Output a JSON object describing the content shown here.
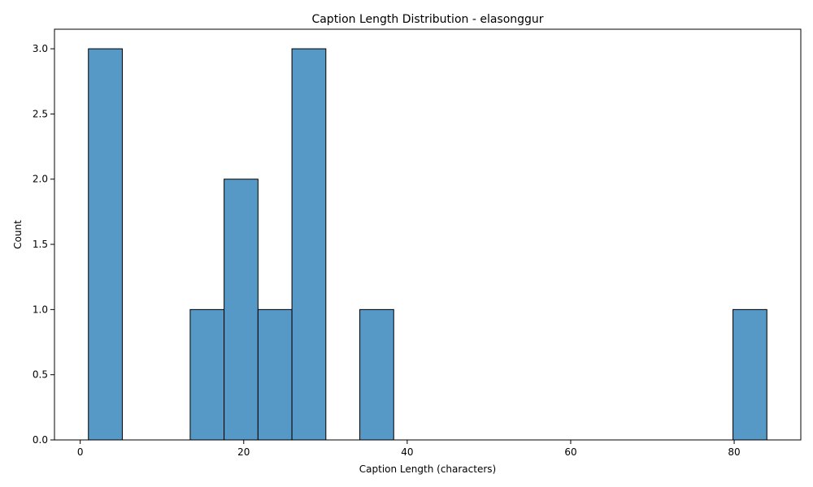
{
  "chart_data": {
    "type": "bar",
    "title": "Caption Length Distribution - elasonggur",
    "xlabel": "Caption Length (characters)",
    "ylabel": "Count",
    "xlim": [
      -3.15,
      88.15
    ],
    "ylim": [
      0,
      3.15
    ],
    "xticks": [
      0,
      20,
      40,
      60,
      80
    ],
    "xtick_labels": [
      "0",
      "20",
      "40",
      "60",
      "80"
    ],
    "yticks": [
      0,
      0.5,
      1.0,
      1.5,
      2.0,
      2.5,
      3.0
    ],
    "ytick_labels": [
      "0.0",
      "0.5",
      "1.0",
      "1.5",
      "2.0",
      "2.5",
      "3.0"
    ],
    "bins": [
      {
        "x0": 1.0,
        "x1": 5.15,
        "count": 3
      },
      {
        "x0": 13.45,
        "x1": 17.6,
        "count": 1
      },
      {
        "x0": 17.6,
        "x1": 21.75,
        "count": 2
      },
      {
        "x0": 21.75,
        "x1": 25.9,
        "count": 1
      },
      {
        "x0": 25.9,
        "x1": 30.05,
        "count": 3
      },
      {
        "x0": 34.2,
        "x1": 38.35,
        "count": 1
      },
      {
        "x0": 79.85,
        "x1": 84.0,
        "count": 1
      }
    ],
    "bar_color": "#5699c6",
    "grid": false,
    "legend": "none"
  }
}
